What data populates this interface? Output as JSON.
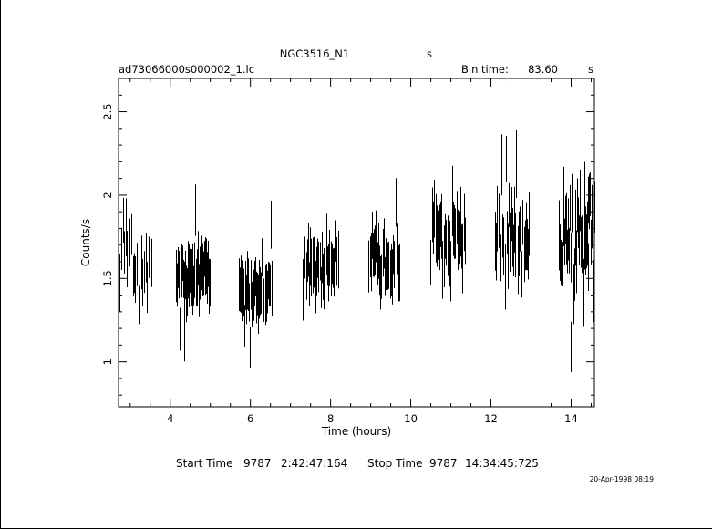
{
  "header": {
    "object_name": "NGC3516_N1",
    "object_unit": "s",
    "file_name": "ad73066000s000002_1.lc",
    "bin_time_label": "Bin time:",
    "bin_time_value": "83.60",
    "bin_time_unit": "s"
  },
  "footer": {
    "start_label": "Start Time",
    "start_day": "9787",
    "start_time": "2:42:47:164",
    "stop_label": "Stop Time",
    "stop_day": "9787",
    "stop_time": "14:34:45:725",
    "print_date": "20-Apr-1998 08:19"
  },
  "chart_data": {
    "type": "scatter",
    "title": "NGC3516_N1",
    "xlabel": "Time (hours)",
    "ylabel": "Counts/s",
    "xlim": [
      2.71,
      14.58
    ],
    "ylim": [
      0.73,
      2.7
    ],
    "x_ticks": [
      {
        "value": 4,
        "label": "4"
      },
      {
        "value": 6,
        "label": "6"
      },
      {
        "value": 8,
        "label": "8"
      },
      {
        "value": 10,
        "label": "10"
      },
      {
        "value": 12,
        "label": "12"
      },
      {
        "value": 14,
        "label": "14"
      }
    ],
    "y_ticks": [
      {
        "value": 1,
        "label": "1"
      },
      {
        "value": 1.5,
        "label": "1.5"
      },
      {
        "value": 2,
        "label": "2"
      },
      {
        "value": 2.5,
        "label": "2.5"
      }
    ],
    "grid": false,
    "error_bars": "vertical",
    "segments": [
      {
        "t_start": 2.71,
        "t_end": 3.52,
        "mean": 1.66,
        "amp": 0.1,
        "err": 0.15,
        "n": 24
      },
      {
        "t_start": 4.15,
        "t_end": 4.98,
        "mean": 1.52,
        "amp": 0.06,
        "err": 0.14,
        "n": 45
      },
      {
        "t_start": 5.72,
        "t_end": 6.55,
        "mean": 1.43,
        "amp": 0.07,
        "err": 0.15,
        "n": 36
      },
      {
        "t_start": 7.3,
        "t_end": 8.18,
        "mean": 1.57,
        "amp": 0.08,
        "err": 0.15,
        "n": 34
      },
      {
        "t_start": 8.95,
        "t_end": 9.72,
        "mean": 1.62,
        "amp": 0.08,
        "err": 0.15,
        "n": 30
      },
      {
        "t_start": 10.5,
        "t_end": 11.35,
        "mean": 1.78,
        "amp": 0.1,
        "err": 0.17,
        "n": 30
      },
      {
        "t_start": 12.1,
        "t_end": 12.98,
        "mean": 1.72,
        "amp": 0.1,
        "err": 0.17,
        "n": 34
      },
      {
        "t_start": 13.7,
        "t_end": 14.58,
        "mean": 1.78,
        "amp": 0.1,
        "err": 0.17,
        "n": 48
      }
    ]
  }
}
